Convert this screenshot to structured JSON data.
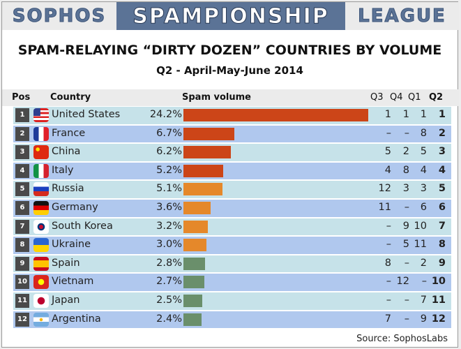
{
  "banner": {
    "left": "SOPHOS",
    "center": "SPAMPIONSHIP",
    "right": "LEAGUE"
  },
  "title": "SPAM-RELAYING “DIRTY DOZEN” COUNTRIES BY VOLUME",
  "subtitle": "Q2 - April-May-June 2014",
  "headers": {
    "pos": "Pos",
    "country": "Country",
    "volume": "Spam volume",
    "q3": "Q3",
    "q4": "Q4",
    "q1": "Q1",
    "q2": "Q2"
  },
  "colors": {
    "top_tier": "#cc4518",
    "mid_tier": "#e5882a",
    "low_tier": "#6a8f6b",
    "row_light": "#c6e2e9",
    "row_dark": "#b0c8ee"
  },
  "chart_data": {
    "type": "table",
    "rows": [
      {
        "pos": "1",
        "country": "United States",
        "flag": "us",
        "pct": "24.2%",
        "value": 24.2,
        "q3": "1",
        "q4": "1",
        "q1": "1",
        "q2": "1",
        "tier": "top_tier"
      },
      {
        "pos": "2",
        "country": "France",
        "flag": "fr",
        "pct": "6.7%",
        "value": 6.7,
        "q3": "–",
        "q4": "–",
        "q1": "8",
        "q2": "2",
        "tier": "top_tier"
      },
      {
        "pos": "3",
        "country": "China",
        "flag": "cn",
        "pct": "6.2%",
        "value": 6.2,
        "q3": "5",
        "q4": "2",
        "q1": "5",
        "q2": "3",
        "tier": "top_tier"
      },
      {
        "pos": "4",
        "country": "Italy",
        "flag": "it",
        "pct": "5.2%",
        "value": 5.2,
        "q3": "4",
        "q4": "8",
        "q1": "4",
        "q2": "4",
        "tier": "top_tier"
      },
      {
        "pos": "5",
        "country": "Russia",
        "flag": "ru",
        "pct": "5.1%",
        "value": 5.1,
        "q3": "12",
        "q4": "3",
        "q1": "3",
        "q2": "5",
        "tier": "mid_tier"
      },
      {
        "pos": "6",
        "country": "Germany",
        "flag": "de",
        "pct": "3.6%",
        "value": 3.6,
        "q3": "11",
        "q4": "–",
        "q1": "6",
        "q2": "6",
        "tier": "mid_tier"
      },
      {
        "pos": "7",
        "country": "South Korea",
        "flag": "kr",
        "pct": "3.2%",
        "value": 3.2,
        "q3": "–",
        "q4": "9",
        "q1": "10",
        "q2": "7",
        "tier": "mid_tier"
      },
      {
        "pos": "8",
        "country": "Ukraine",
        "flag": "ua",
        "pct": "3.0%",
        "value": 3.0,
        "q3": "–",
        "q4": "5",
        "q1": "11",
        "q2": "8",
        "tier": "mid_tier"
      },
      {
        "pos": "9",
        "country": "Spain",
        "flag": "es",
        "pct": "2.8%",
        "value": 2.8,
        "q3": "8",
        "q4": "–",
        "q1": "2",
        "q2": "9",
        "tier": "low_tier"
      },
      {
        "pos": "10",
        "country": "Vietnam",
        "flag": "vn",
        "pct": "2.7%",
        "value": 2.7,
        "q3": "–",
        "q4": "12",
        "q1": "–",
        "q2": "10",
        "tier": "low_tier"
      },
      {
        "pos": "11",
        "country": "Japan",
        "flag": "jp",
        "pct": "2.5%",
        "value": 2.5,
        "q3": "–",
        "q4": "–",
        "q1": "7",
        "q2": "11",
        "tier": "low_tier"
      },
      {
        "pos": "12",
        "country": "Argentina",
        "flag": "ar",
        "pct": "2.4%",
        "value": 2.4,
        "q3": "7",
        "q4": "–",
        "q1": "9",
        "q2": "12",
        "tier": "low_tier"
      }
    ]
  },
  "source": "Source: SophosLabs"
}
